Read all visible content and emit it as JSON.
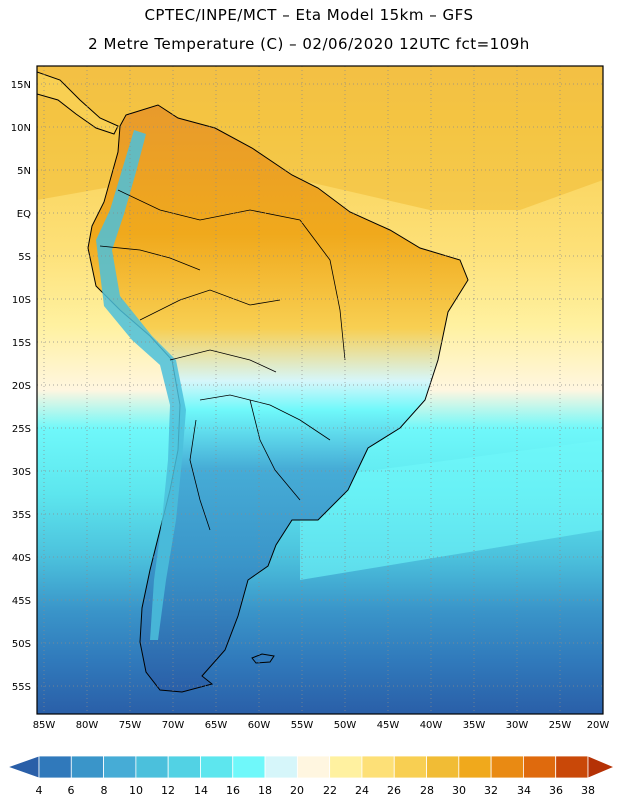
{
  "header": {
    "line1": "CPTEC/INPE/MCT –   Eta Model 15km – GFS",
    "line2": "2 Metre Temperature (C) – 02/06/2020 12UTC fct=109h"
  },
  "map": {
    "lat_labels": [
      "15N",
      "10N",
      "5N",
      "EQ",
      "5S",
      "10S",
      "15S",
      "20S",
      "25S",
      "30S",
      "35S",
      "40S",
      "45S",
      "50S",
      "55S"
    ],
    "lon_labels": [
      "85W",
      "80W",
      "75W",
      "70W",
      "65W",
      "60W",
      "55W",
      "50W",
      "45W",
      "40W",
      "35W",
      "30W",
      "25W",
      "20W"
    ]
  },
  "colorbar": {
    "levels": [
      "4",
      "6",
      "8",
      "10",
      "12",
      "14",
      "16",
      "18",
      "20",
      "22",
      "24",
      "26",
      "28",
      "30",
      "32",
      "34",
      "36",
      "38"
    ],
    "colors": [
      "#2a5fa8",
      "#3079bb",
      "#3a95c9",
      "#46acd6",
      "#4bc0dc",
      "#52d2e4",
      "#5de6ee",
      "#6ff8fa",
      "#d6f6fa",
      "#fff6e0",
      "#fff1a0",
      "#fde077",
      "#f8cf52",
      "#f1bc35",
      "#f0a91c",
      "#e98a13",
      "#df6a0d",
      "#c94808",
      "#b53206"
    ]
  }
}
